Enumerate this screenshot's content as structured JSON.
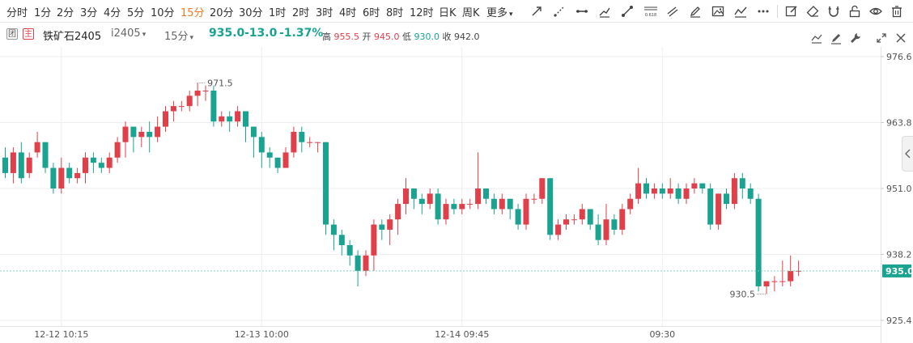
{
  "toolbar": {
    "intervals": [
      "分时",
      "1分",
      "2分",
      "3分",
      "4分",
      "5分",
      "10分",
      "15分",
      "20分",
      "30分",
      "1时",
      "2时",
      "3时",
      "4时",
      "6时",
      "8时",
      "12时",
      "日K",
      "周K",
      "更多"
    ],
    "active_interval": "15分",
    "more_arrow": "▾",
    "fib_label": "0.618"
  },
  "info": {
    "badge_1": "团",
    "badge_2": "主",
    "symbol": "铁矿石2405",
    "code": "i2405",
    "code_caret": "▾",
    "period": "15分",
    "period_caret": "▾",
    "last_price": "935.0",
    "change": "-13.0",
    "change_pct": "-1.37%",
    "high_label": "高",
    "high": "955.5",
    "open_label": "开",
    "open": "945.0",
    "low_label": "低",
    "low": "930.0",
    "close_label": "收",
    "close": "942.0"
  },
  "colors": {
    "up": "#e0404a",
    "down": "#1aa391",
    "grid": "#eeeeee",
    "axis_text": "#555555",
    "dash": "#7fcfc2"
  },
  "chart_data": {
    "type": "candlestick",
    "y_ticks": [
      976.6,
      963.8,
      951.0,
      938.2,
      925.4
    ],
    "ylim": [
      925.4,
      976.6
    ],
    "x_ticks": [
      {
        "label": "12-12 10:15",
        "index": 7
      },
      {
        "label": "12-13 10:00",
        "index": 32
      },
      {
        "label": "12-14 09:45",
        "index": 57
      },
      {
        "label": "09:30",
        "index": 82
      }
    ],
    "high_marker": {
      "label": "971.5",
      "index": 24,
      "value": 971.5
    },
    "low_marker": {
      "label": "930.5",
      "index": 95,
      "value": 930.5
    },
    "last_price": 935.0,
    "last_price_label": "935.0",
    "candles": [
      [
        957,
        954,
        959,
        953
      ],
      [
        954,
        958,
        959,
        952
      ],
      [
        958,
        953,
        960,
        952
      ],
      [
        954,
        957,
        958,
        953
      ],
      [
        958,
        960,
        962,
        957
      ],
      [
        960,
        955,
        957,
        954
      ],
      [
        955,
        951,
        956,
        950
      ],
      [
        951,
        955,
        957,
        950
      ],
      [
        955,
        953,
        956,
        952
      ],
      [
        953,
        954,
        955,
        952
      ],
      [
        954,
        957,
        958,
        952
      ],
      [
        957,
        956,
        958,
        954
      ],
      [
        956,
        955,
        957,
        954
      ],
      [
        955,
        957,
        958,
        954
      ],
      [
        957,
        960,
        961,
        956
      ],
      [
        960,
        963,
        964,
        957
      ],
      [
        963,
        961,
        962,
        958
      ],
      [
        961,
        962,
        963,
        959
      ],
      [
        962,
        961,
        964,
        958
      ],
      [
        961,
        963,
        965,
        960
      ],
      [
        963,
        966,
        967,
        962
      ],
      [
        966,
        967,
        968,
        964
      ],
      [
        967,
        967,
        968,
        966
      ],
      [
        967,
        969,
        970,
        966
      ],
      [
        969,
        970,
        971.5,
        967
      ],
      [
        970,
        970,
        971,
        968
      ],
      [
        970,
        964,
        971,
        963
      ],
      [
        964,
        965,
        966,
        963
      ],
      [
        965,
        964,
        966,
        962
      ],
      [
        964,
        966,
        967,
        963
      ],
      [
        966,
        963,
        966,
        960
      ],
      [
        963,
        961,
        963,
        957
      ],
      [
        961,
        958,
        962,
        955
      ],
      [
        958,
        957,
        959,
        955
      ],
      [
        957,
        955,
        957,
        954
      ],
      [
        955,
        958,
        959,
        955
      ],
      [
        958,
        962,
        963,
        957
      ],
      [
        962,
        960,
        963,
        958
      ],
      [
        960,
        960,
        961,
        959
      ],
      [
        960,
        960,
        960,
        958
      ],
      [
        960,
        944,
        960,
        942
      ],
      [
        944,
        942,
        945,
        939
      ],
      [
        942,
        940,
        943,
        938
      ],
      [
        940,
        938,
        941,
        936
      ],
      [
        938,
        935,
        939,
        932
      ],
      [
        935,
        938,
        939,
        934
      ],
      [
        938,
        944,
        945,
        935
      ],
      [
        944,
        943,
        945,
        941
      ],
      [
        943,
        945,
        946,
        940
      ],
      [
        945,
        948,
        949,
        942
      ],
      [
        948,
        951,
        953,
        946
      ],
      [
        951,
        949,
        951,
        947
      ],
      [
        949,
        948,
        950,
        946
      ],
      [
        948,
        950,
        951,
        947
      ],
      [
        950,
        945,
        951,
        944
      ],
      [
        945,
        948,
        949,
        944
      ],
      [
        948,
        947,
        949,
        946
      ],
      [
        947,
        948,
        949,
        946
      ],
      [
        948,
        948,
        949,
        947
      ],
      [
        948,
        951,
        958,
        947
      ],
      [
        951,
        949,
        950,
        948
      ],
      [
        949,
        947,
        950,
        946
      ],
      [
        947,
        949,
        950,
        946
      ],
      [
        949,
        947,
        949,
        945
      ],
      [
        947,
        944,
        948,
        943
      ],
      [
        944,
        949,
        950,
        943
      ],
      [
        949,
        949,
        950,
        948
      ],
      [
        949,
        953,
        953,
        948
      ],
      [
        953,
        942,
        953,
        941
      ],
      [
        942,
        944,
        945,
        941
      ],
      [
        944,
        945,
        946,
        943
      ],
      [
        945,
        945,
        946,
        944
      ],
      [
        945,
        947,
        948,
        944
      ],
      [
        947,
        944,
        947,
        943
      ],
      [
        944,
        941,
        946,
        940
      ],
      [
        941,
        945,
        948,
        940
      ],
      [
        945,
        943,
        946,
        942
      ],
      [
        943,
        947,
        948,
        942
      ],
      [
        947,
        949,
        950,
        946
      ],
      [
        949,
        952,
        955,
        948
      ],
      [
        952,
        950,
        953,
        949
      ],
      [
        950,
        951,
        952,
        949
      ],
      [
        951,
        950,
        952,
        949
      ],
      [
        950,
        951,
        953,
        949
      ],
      [
        951,
        949,
        952,
        948
      ],
      [
        949,
        951,
        952,
        948
      ],
      [
        951,
        952,
        953,
        950
      ],
      [
        952,
        951,
        952,
        950
      ],
      [
        951,
        944,
        952,
        943
      ],
      [
        944,
        950,
        950,
        943
      ],
      [
        950,
        948,
        951,
        947
      ],
      [
        948,
        953,
        954,
        947
      ],
      [
        953,
        951,
        954,
        949
      ],
      [
        951,
        949,
        952,
        948
      ],
      [
        949,
        932,
        950,
        931
      ],
      [
        932,
        933,
        933,
        930.5
      ],
      [
        933,
        933,
        934,
        931
      ],
      [
        933,
        933,
        937,
        932
      ],
      [
        933,
        935,
        938,
        932
      ],
      [
        935,
        935,
        937,
        934
      ]
    ]
  }
}
